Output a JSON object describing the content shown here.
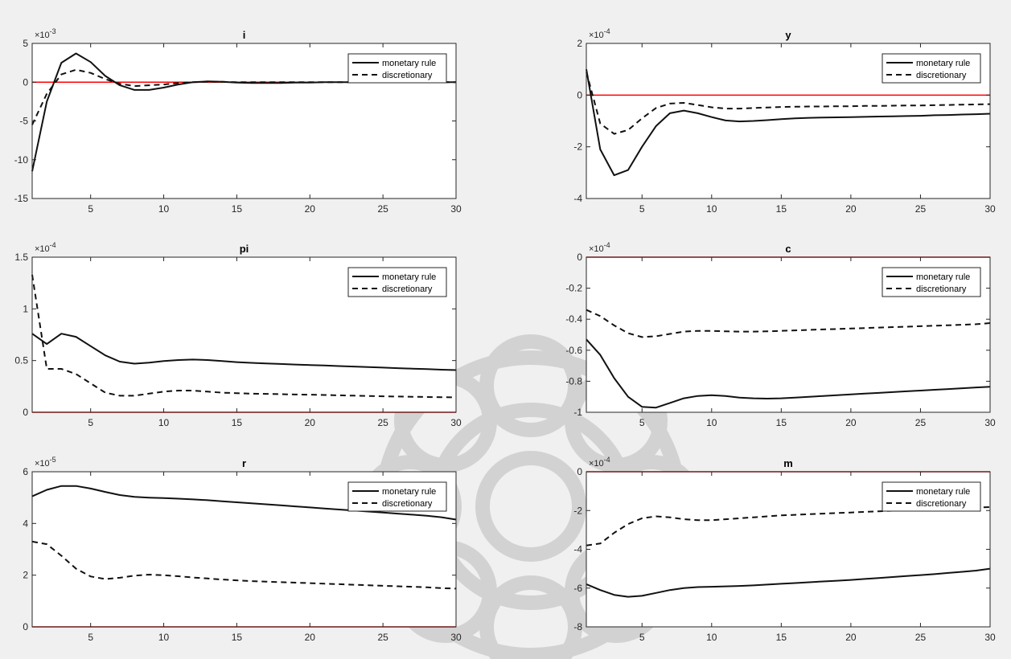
{
  "figure": {
    "background": "#f0f0f0",
    "axes_background": "#ffffff",
    "line_color": "#111111",
    "zero_line_color": "#ff0000"
  },
  "chart_data": [
    {
      "type": "line",
      "title": "i",
      "exponent_label": "×10-3",
      "exponent_base": "×10",
      "exponent_power": "-3",
      "xlim": [
        1,
        30
      ],
      "ylim": [
        -15,
        5
      ],
      "xticks": [
        5,
        10,
        15,
        20,
        25,
        30
      ],
      "yticks": [
        -15,
        -10,
        -5,
        0,
        5
      ],
      "ytick_labels": [
        "-15",
        "-10",
        "-5",
        "0",
        "5"
      ],
      "legend": {
        "location": "top-right",
        "entries": [
          "monetary rule",
          "discretionary"
        ]
      },
      "x": [
        1,
        2,
        3,
        4,
        5,
        6,
        7,
        8,
        9,
        10,
        11,
        12,
        13,
        14,
        15,
        16,
        17,
        18,
        19,
        20,
        21,
        22,
        23,
        24,
        25,
        26,
        27,
        28,
        29,
        30
      ],
      "series": [
        {
          "name": "monetary rule",
          "style": "solid",
          "values": [
            -11.5,
            -2.5,
            2.5,
            3.7,
            2.6,
            0.8,
            -0.4,
            -1.0,
            -1.0,
            -0.7,
            -0.3,
            0.0,
            0.1,
            0.05,
            -0.05,
            -0.1,
            -0.1,
            -0.1,
            -0.05,
            -0.05,
            0,
            0,
            0,
            0,
            0,
            0,
            0,
            0,
            0,
            0
          ]
        },
        {
          "name": "discretionary",
          "style": "dashed",
          "values": [
            -5.5,
            -1.5,
            1.0,
            1.6,
            1.2,
            0.4,
            -0.2,
            -0.5,
            -0.4,
            -0.3,
            -0.1,
            0.0,
            0.05,
            0.05,
            0,
            0,
            0,
            0,
            0,
            0,
            0,
            0,
            0,
            0,
            0,
            0,
            0,
            0,
            0,
            0
          ]
        }
      ]
    },
    {
      "type": "line",
      "title": "y",
      "exponent_label": "×10-4",
      "exponent_base": "×10",
      "exponent_power": "-4",
      "xlim": [
        1,
        30
      ],
      "ylim": [
        -4,
        2
      ],
      "xticks": [
        5,
        10,
        15,
        20,
        25,
        30
      ],
      "yticks": [
        -4,
        -2,
        0,
        2
      ],
      "ytick_labels": [
        "-4",
        "-2",
        "0",
        "2"
      ],
      "legend": {
        "location": "top-right",
        "entries": [
          "monetary rule",
          "discretionary"
        ]
      },
      "x": [
        1,
        2,
        3,
        4,
        5,
        6,
        7,
        8,
        9,
        10,
        11,
        12,
        13,
        14,
        15,
        16,
        17,
        18,
        19,
        20,
        21,
        22,
        23,
        24,
        25,
        26,
        27,
        28,
        29,
        30
      ],
      "series": [
        {
          "name": "monetary rule",
          "style": "solid",
          "values": [
            1.0,
            -2.1,
            -3.1,
            -2.9,
            -2.0,
            -1.2,
            -0.7,
            -0.6,
            -0.7,
            -0.85,
            -0.98,
            -1.02,
            -1.0,
            -0.97,
            -0.93,
            -0.9,
            -0.88,
            -0.87,
            -0.86,
            -0.85,
            -0.84,
            -0.83,
            -0.82,
            -0.81,
            -0.8,
            -0.78,
            -0.77,
            -0.75,
            -0.74,
            -0.72
          ]
        },
        {
          "name": "discretionary",
          "style": "dashed",
          "values": [
            0.9,
            -1.1,
            -1.5,
            -1.35,
            -0.9,
            -0.5,
            -0.33,
            -0.3,
            -0.38,
            -0.47,
            -0.52,
            -0.52,
            -0.5,
            -0.48,
            -0.46,
            -0.45,
            -0.44,
            -0.44,
            -0.43,
            -0.43,
            -0.42,
            -0.42,
            -0.41,
            -0.4,
            -0.4,
            -0.39,
            -0.38,
            -0.37,
            -0.36,
            -0.35
          ]
        }
      ]
    },
    {
      "type": "line",
      "title": "pi",
      "exponent_label": "×10-4",
      "exponent_base": "×10",
      "exponent_power": "-4",
      "xlim": [
        1,
        30
      ],
      "ylim": [
        0,
        1.5
      ],
      "xticks": [
        5,
        10,
        15,
        20,
        25,
        30
      ],
      "yticks": [
        0,
        0.5,
        1,
        1.5
      ],
      "ytick_labels": [
        "0",
        "0.5",
        "1",
        "1.5"
      ],
      "legend": {
        "location": "top-right",
        "entries": [
          "monetary rule",
          "discretionary"
        ]
      },
      "x": [
        1,
        2,
        3,
        4,
        5,
        6,
        7,
        8,
        9,
        10,
        11,
        12,
        13,
        14,
        15,
        16,
        17,
        18,
        19,
        20,
        21,
        22,
        23,
        24,
        25,
        26,
        27,
        28,
        29,
        30
      ],
      "series": [
        {
          "name": "monetary rule",
          "style": "solid",
          "values": [
            0.76,
            0.66,
            0.76,
            0.73,
            0.64,
            0.55,
            0.49,
            0.47,
            0.48,
            0.495,
            0.505,
            0.51,
            0.505,
            0.495,
            0.485,
            0.478,
            0.472,
            0.467,
            0.462,
            0.457,
            0.452,
            0.447,
            0.442,
            0.437,
            0.432,
            0.427,
            0.422,
            0.417,
            0.412,
            0.408
          ]
        },
        {
          "name": "discretionary",
          "style": "dashed",
          "values": [
            1.33,
            0.42,
            0.42,
            0.37,
            0.28,
            0.19,
            0.16,
            0.16,
            0.18,
            0.2,
            0.21,
            0.21,
            0.2,
            0.19,
            0.185,
            0.18,
            0.178,
            0.175,
            0.172,
            0.17,
            0.167,
            0.164,
            0.161,
            0.158,
            0.155,
            0.152,
            0.15,
            0.148,
            0.146,
            0.144
          ]
        }
      ]
    },
    {
      "type": "line",
      "title": "c",
      "exponent_label": "×10-4",
      "exponent_base": "×10",
      "exponent_power": "-4",
      "xlim": [
        1,
        30
      ],
      "ylim": [
        -1,
        0
      ],
      "xticks": [
        5,
        10,
        15,
        20,
        25,
        30
      ],
      "yticks": [
        -1,
        -0.8,
        -0.6,
        -0.4,
        -0.2,
        0
      ],
      "ytick_labels": [
        "-1",
        "-0.8",
        "-0.6",
        "-0.4",
        "-0.2",
        "0"
      ],
      "legend": {
        "location": "top-right",
        "entries": [
          "monetary rule",
          "discretionary"
        ]
      },
      "x": [
        1,
        2,
        3,
        4,
        5,
        6,
        7,
        8,
        9,
        10,
        11,
        12,
        13,
        14,
        15,
        16,
        17,
        18,
        19,
        20,
        21,
        22,
        23,
        24,
        25,
        26,
        27,
        28,
        29,
        30
      ],
      "series": [
        {
          "name": "monetary rule",
          "style": "solid",
          "values": [
            -0.53,
            -0.63,
            -0.78,
            -0.9,
            -0.965,
            -0.97,
            -0.94,
            -0.91,
            -0.895,
            -0.89,
            -0.895,
            -0.905,
            -0.91,
            -0.912,
            -0.91,
            -0.905,
            -0.9,
            -0.895,
            -0.89,
            -0.885,
            -0.88,
            -0.875,
            -0.87,
            -0.865,
            -0.86,
            -0.855,
            -0.85,
            -0.845,
            -0.84,
            -0.835
          ]
        },
        {
          "name": "discretionary",
          "style": "dashed",
          "values": [
            -0.34,
            -0.38,
            -0.44,
            -0.49,
            -0.515,
            -0.51,
            -0.495,
            -0.48,
            -0.475,
            -0.475,
            -0.478,
            -0.48,
            -0.48,
            -0.478,
            -0.475,
            -0.472,
            -0.469,
            -0.466,
            -0.463,
            -0.46,
            -0.457,
            -0.454,
            -0.451,
            -0.448,
            -0.445,
            -0.442,
            -0.439,
            -0.436,
            -0.432,
            -0.425
          ]
        }
      ]
    },
    {
      "type": "line",
      "title": "r",
      "exponent_label": "×10-5",
      "exponent_base": "×10",
      "exponent_power": "-5",
      "xlim": [
        1,
        30
      ],
      "ylim": [
        0,
        6
      ],
      "xticks": [
        5,
        10,
        15,
        20,
        25,
        30
      ],
      "yticks": [
        0,
        2,
        4,
        6
      ],
      "ytick_labels": [
        "0",
        "2",
        "4",
        "6"
      ],
      "legend": {
        "location": "top-right",
        "entries": [
          "monetary rule",
          "discretionary"
        ]
      },
      "x": [
        1,
        2,
        3,
        4,
        5,
        6,
        7,
        8,
        9,
        10,
        11,
        12,
        13,
        14,
        15,
        16,
        17,
        18,
        19,
        20,
        21,
        22,
        23,
        24,
        25,
        26,
        27,
        28,
        29,
        30
      ],
      "series": [
        {
          "name": "monetary rule",
          "style": "solid",
          "values": [
            5.05,
            5.3,
            5.45,
            5.45,
            5.35,
            5.22,
            5.1,
            5.03,
            5.0,
            4.98,
            4.96,
            4.93,
            4.9,
            4.86,
            4.82,
            4.78,
            4.74,
            4.7,
            4.66,
            4.62,
            4.58,
            4.54,
            4.5,
            4.46,
            4.42,
            4.38,
            4.34,
            4.3,
            4.24,
            4.15
          ]
        },
        {
          "name": "discretionary",
          "style": "dashed",
          "values": [
            3.3,
            3.2,
            2.75,
            2.25,
            1.95,
            1.85,
            1.9,
            1.98,
            2.02,
            2.0,
            1.96,
            1.91,
            1.87,
            1.83,
            1.8,
            1.77,
            1.75,
            1.73,
            1.71,
            1.69,
            1.67,
            1.65,
            1.63,
            1.61,
            1.59,
            1.57,
            1.55,
            1.53,
            1.5,
            1.48
          ]
        }
      ]
    },
    {
      "type": "line",
      "title": "m",
      "exponent_label": "×10-4",
      "exponent_base": "×10",
      "exponent_power": "-4",
      "xlim": [
        1,
        30
      ],
      "ylim": [
        -8,
        0
      ],
      "xticks": [
        5,
        10,
        15,
        20,
        25,
        30
      ],
      "yticks": [
        -8,
        -6,
        -4,
        -2,
        0
      ],
      "ytick_labels": [
        "-8",
        "-6",
        "-4",
        "-2",
        "0"
      ],
      "legend": {
        "location": "top-right",
        "entries": [
          "monetary rule",
          "discretionary"
        ]
      },
      "x": [
        1,
        2,
        3,
        4,
        5,
        6,
        7,
        8,
        9,
        10,
        11,
        12,
        13,
        14,
        15,
        16,
        17,
        18,
        19,
        20,
        21,
        22,
        23,
        24,
        25,
        26,
        27,
        28,
        29,
        30
      ],
      "series": [
        {
          "name": "monetary rule",
          "style": "solid",
          "values": [
            -5.8,
            -6.1,
            -6.35,
            -6.45,
            -6.4,
            -6.25,
            -6.1,
            -6.0,
            -5.95,
            -5.93,
            -5.91,
            -5.89,
            -5.86,
            -5.82,
            -5.78,
            -5.74,
            -5.7,
            -5.66,
            -5.62,
            -5.58,
            -5.53,
            -5.48,
            -5.43,
            -5.38,
            -5.33,
            -5.28,
            -5.22,
            -5.16,
            -5.1,
            -5.0
          ]
        },
        {
          "name": "discretionary",
          "style": "dashed",
          "values": [
            -3.8,
            -3.7,
            -3.15,
            -2.7,
            -2.4,
            -2.3,
            -2.35,
            -2.45,
            -2.5,
            -2.5,
            -2.45,
            -2.4,
            -2.35,
            -2.3,
            -2.25,
            -2.22,
            -2.19,
            -2.16,
            -2.13,
            -2.1,
            -2.07,
            -2.04,
            -2.01,
            -1.98,
            -1.95,
            -1.92,
            -1.9,
            -1.88,
            -1.85,
            -1.82
          ]
        }
      ]
    }
  ]
}
